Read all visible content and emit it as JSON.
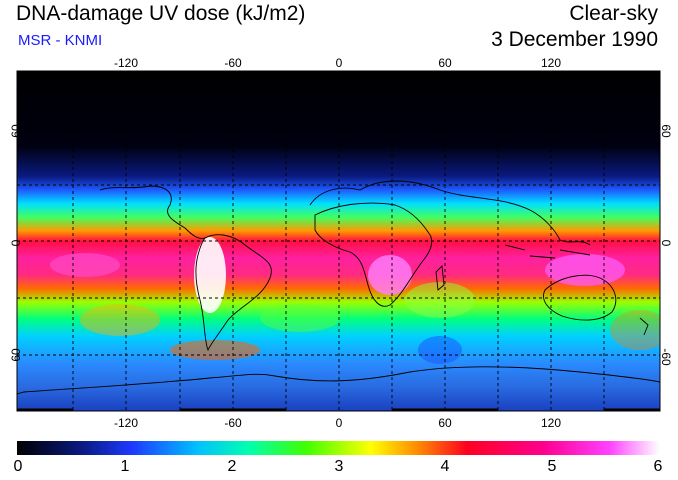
{
  "header": {
    "title": "DNA-damage UV dose (kJ/m2)",
    "subtitle": "MSR - KNMI",
    "condition": "Clear-sky",
    "date": "3 December 1990"
  },
  "map": {
    "lon_labels": [
      "-120",
      "-60",
      "0",
      "60",
      "120"
    ],
    "lat_labels_left": [
      "60",
      "0",
      "-60"
    ],
    "lat_labels_right": [
      "60",
      "0",
      "-60"
    ]
  },
  "colorbar": {
    "ticks": [
      "0",
      "1",
      "2",
      "3",
      "4",
      "5",
      "6"
    ],
    "min": 0,
    "max": 6
  }
}
